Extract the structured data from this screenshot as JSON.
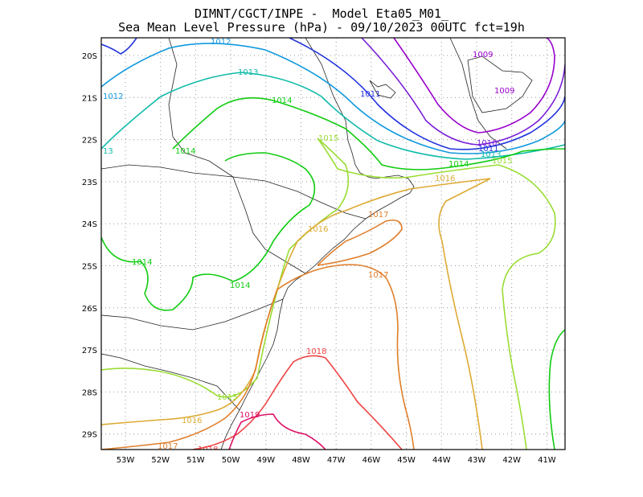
{
  "header": {
    "line1": "DIMNT/CGCT/INPE -  Model Eta05_M01_",
    "line2": "Sea Mean Level Pressure (hPa) - 09/10/2023 00UTC fct=19h"
  },
  "axes": {
    "lat_labels": [
      "20S",
      "21S",
      "22S",
      "23S",
      "24S",
      "25S",
      "26S",
      "27S",
      "28S",
      "29S"
    ],
    "lon_labels": [
      "53W",
      "52W",
      "51W",
      "50W",
      "49W",
      "48W",
      "47W",
      "46W",
      "45W",
      "44W",
      "43W",
      "42W",
      "41W"
    ]
  },
  "contours": [
    {
      "value": "1009",
      "color": "#9900cc"
    },
    {
      "value": "1010",
      "color": "#7a20d8"
    },
    {
      "value": "1011",
      "color": "#2233dd"
    },
    {
      "value": "1012",
      "color": "#1199dd"
    },
    {
      "value": "1013",
      "color": "#11bbaa"
    },
    {
      "value": "1014",
      "color": "#11cc11"
    },
    {
      "value": "1015",
      "color": "#99dd33"
    },
    {
      "value": "1016",
      "color": "#ddaa33"
    },
    {
      "value": "1017",
      "color": "#e07e2a"
    },
    {
      "value": "1018",
      "color": "#ee4444"
    },
    {
      "value": "1019",
      "color": "#dd1166"
    }
  ]
}
